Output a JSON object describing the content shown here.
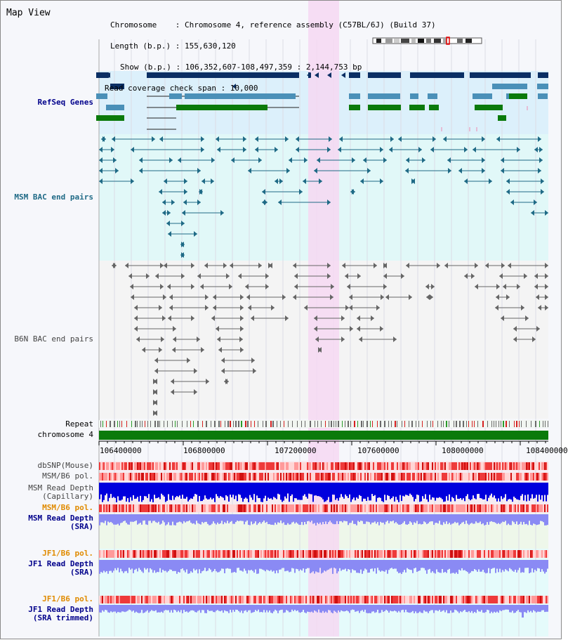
{
  "title": "Map View",
  "info": {
    "chromosome": "Chromosome    : Chromosome 4, reference assembly (C57BL/6J) (Build 37)",
    "length": "Length (b.p.) : 155,630,120",
    "show": "Show (b.p.) : 106,352,607-108,497,359 : 2,144,753 bp",
    "coverage": "Read coverage check span : 10,000"
  },
  "tracks": {
    "refseq": "RefSeq Genes",
    "msm_bac": "MSM BAC end pairs",
    "b6n_bac": "B6N BAC end pairs",
    "repeat": "Repeat",
    "chromosome": "chromosome 4",
    "dbsnp": "dbSNP(Mouse)",
    "msm_b6_pol": "MSM/B6 pol.",
    "msm_depth_cap_1": "MSM Read Depth",
    "msm_depth_cap_2": "(Capillary)",
    "msm_b6_pol_2": "MSM/B6 pol.",
    "msm_depth_sra_1": "MSM Read Depth",
    "msm_depth_sra_2": "(SRA)",
    "jf1_pol": "JF1/B6 pol.",
    "jf1_depth_1": "JF1 Read Depth",
    "jf1_depth_2": "(SRA)",
    "jf1_pol_2": "JF1/B6 pol.",
    "jf1_trim_1": "JF1 Read Depth",
    "jf1_trim_2": "(SRA trimmed)"
  },
  "axis_ticks": [
    "106400000",
    "106800000",
    "107200000",
    "107600000",
    "108000000",
    "108400000"
  ],
  "colors": {
    "refseq_bg": "#dcf0fb",
    "msm_bg": "#e1f8f8",
    "highlight": "#f6d8f2",
    "gene_dark": "#0b2f64",
    "gene_mid": "#4a90b8",
    "gene_green": "#0b7a0b",
    "msm_line": "#1f6a86",
    "b6n_line": "#666666",
    "chrom": "#0b7a0b",
    "depth_blue": "#0000dd",
    "depth_light": "#8a8af4",
    "snp_red": "#ee3a3a"
  }
}
